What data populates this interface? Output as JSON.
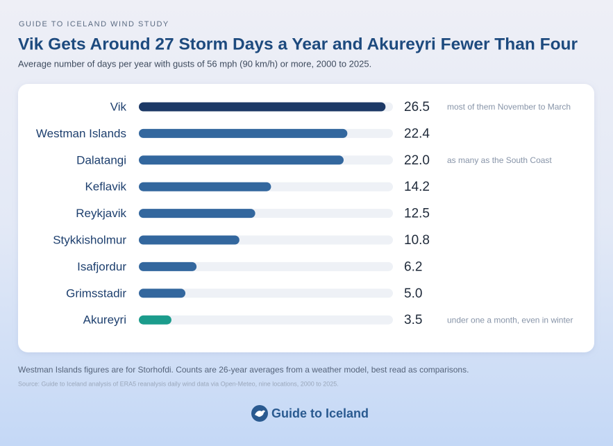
{
  "eyebrow": "GUIDE TO ICELAND WIND STUDY",
  "chart_data": {
    "type": "bar",
    "orientation": "horizontal",
    "title": "Vik Gets Around 27 Storm Days a Year and Akureyri Fewer Than Four",
    "subtitle": "Average number of days per year with gusts of 56 mph (90 km/h) or more, 2000 to 2025.",
    "categories": [
      "Vik",
      "Westman Islands",
      "Dalatangi",
      "Keflavik",
      "Reykjavik",
      "Stykkisholmur",
      "Isafjordur",
      "Grimsstadir",
      "Akureyri"
    ],
    "values": [
      26.5,
      22.4,
      22.0,
      14.2,
      12.5,
      10.8,
      6.2,
      5.0,
      3.5
    ],
    "value_labels": [
      "26.5",
      "22.4",
      "22.0",
      "14.2",
      "12.5",
      "10.8",
      "6.2",
      "5.0",
      "3.5"
    ],
    "colors": [
      "#1c3966",
      "#33679e",
      "#33679e",
      "#33679e",
      "#33679e",
      "#33679e",
      "#33679e",
      "#33679e",
      "#1b9c8c"
    ],
    "notes": [
      "most of them November to March",
      null,
      "as many as the South Coast",
      null,
      null,
      null,
      null,
      null,
      "under one a month, even in winter"
    ]
  },
  "footnote": "Westman Islands figures are for Storhofdi. Counts are 26-year averages from a weather model, best read as comparisons.",
  "source": "Source: Guide to Iceland analysis of ERA5 reanalysis daily wind data via Open-Meteo, nine locations, 2000 to 2025.",
  "logo": "Guide to Iceland"
}
